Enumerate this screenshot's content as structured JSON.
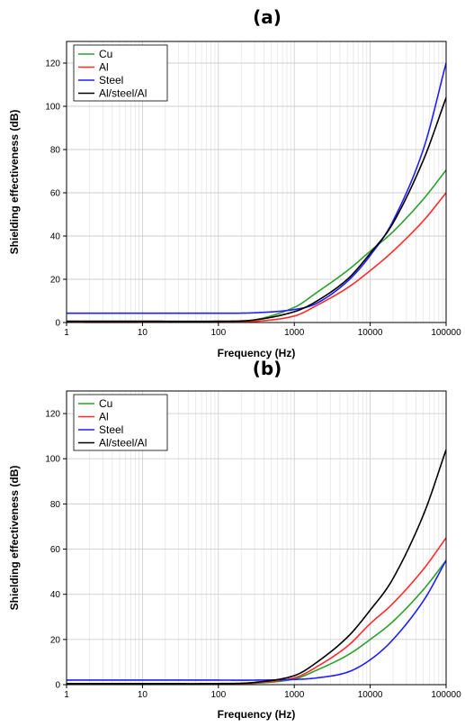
{
  "chart_data": [
    {
      "type": "line",
      "panel_label": "(a)",
      "xlabel": "Frequency (Hz)",
      "ylabel": "Shielding effectiveness (dB)",
      "xscale": "log",
      "xlim": [
        1,
        100000
      ],
      "ylim": [
        0,
        130
      ],
      "xticks": [
        1,
        10,
        100,
        1000,
        10000,
        100000
      ],
      "xtick_labels": [
        "1",
        "10",
        "100",
        "1000",
        "10000",
        "100000"
      ],
      "yticks": [
        0,
        20,
        40,
        60,
        80,
        100,
        120
      ],
      "ytick_labels": [
        "0",
        "20",
        "40",
        "60",
        "80",
        "100",
        "120"
      ],
      "grid": true,
      "legend_position": "top-left",
      "x": [
        1,
        10,
        100,
        300,
        1000,
        2000,
        5000,
        10000,
        20000,
        50000,
        100000
      ],
      "series": [
        {
          "name": "Cu",
          "color": "#2ca02c",
          "values": [
            0.3,
            0.3,
            0.4,
            1.2,
            7,
            14,
            24,
            33,
            42,
            57,
            70.5
          ]
        },
        {
          "name": "Al",
          "color": "#ff2b2b",
          "values": [
            0.1,
            0.1,
            0.2,
            0.5,
            3,
            8,
            16,
            24,
            33,
            47,
            60
          ]
        },
        {
          "name": "Steel",
          "color": "#1f1fff",
          "values": [
            4.3,
            4.3,
            4.3,
            4.5,
            6,
            9,
            19,
            31,
            47,
            80,
            120
          ]
        },
        {
          "name": "Al/steel/Al",
          "color": "#000000",
          "values": [
            0.6,
            0.6,
            0.6,
            1.2,
            5,
            10,
            20,
            32,
            46,
            75,
            104
          ]
        }
      ]
    },
    {
      "type": "line",
      "panel_label": "(b)",
      "xlabel": "Frequency (Hz)",
      "ylabel": "Shielding effectiveness (dB)",
      "xscale": "log",
      "xlim": [
        1,
        100000
      ],
      "ylim": [
        0,
        130
      ],
      "xticks": [
        1,
        10,
        100,
        1000,
        10000,
        100000
      ],
      "xtick_labels": [
        "1",
        "10",
        "100",
        "1000",
        "10000",
        "100000"
      ],
      "yticks": [
        0,
        20,
        40,
        60,
        80,
        100,
        120
      ],
      "ytick_labels": [
        "0",
        "20",
        "40",
        "60",
        "80",
        "100",
        "120"
      ],
      "grid": true,
      "legend_position": "top-left",
      "x": [
        1,
        10,
        100,
        300,
        1000,
        2000,
        5000,
        10000,
        20000,
        50000,
        100000
      ],
      "series": [
        {
          "name": "Cu",
          "color": "#2ca02c",
          "values": [
            0.3,
            0.3,
            0.3,
            0.6,
            2.5,
            6.5,
            13,
            20,
            28,
            42,
            55
          ]
        },
        {
          "name": "Al",
          "color": "#ff2b2b",
          "values": [
            0.2,
            0.2,
            0.3,
            0.8,
            3,
            8,
            17,
            27,
            36,
            51,
            65
          ]
        },
        {
          "name": "Steel",
          "color": "#1f1fff",
          "values": [
            2,
            2,
            2,
            2,
            2.3,
            3,
            5.5,
            11,
            20,
            37,
            55
          ]
        },
        {
          "name": "Al/steel/Al",
          "color": "#000000",
          "values": [
            0.5,
            0.5,
            0.5,
            1,
            4,
            10,
            21,
            33,
            47,
            75,
            104
          ]
        }
      ]
    }
  ]
}
